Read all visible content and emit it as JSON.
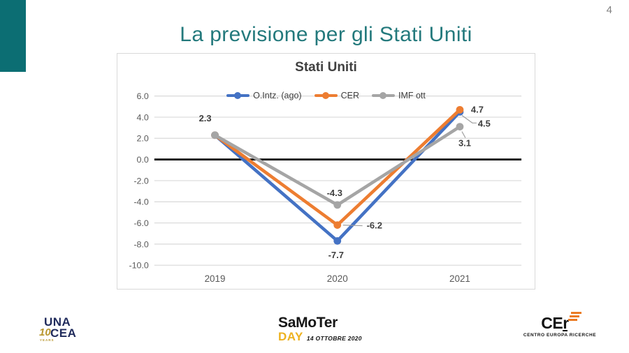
{
  "page": {
    "number": "4"
  },
  "slide": {
    "title": "La previsione per gli Stati Uniti"
  },
  "colors": {
    "accent_teal": "#0C6E73",
    "title_teal": "#23797C",
    "gridline": "#D9D9D9",
    "zero_line": "#000000",
    "axis_text": "#595959",
    "data_label_text": "#3F3F3F"
  },
  "chart_data": {
    "type": "line",
    "title": "Stati Uniti",
    "categories": [
      "2019",
      "2020",
      "2021"
    ],
    "series": [
      {
        "name": "O.Intz. (ago)",
        "color": "#4472C4",
        "values": [
          2.3,
          -7.7,
          4.5
        ]
      },
      {
        "name": "CER",
        "color": "#ED7D31",
        "values": [
          2.3,
          -6.2,
          4.7
        ]
      },
      {
        "name": "IMF ott",
        "color": "#A5A5A5",
        "values": [
          2.3,
          -4.3,
          3.1
        ]
      }
    ],
    "ylim": [
      -10,
      6
    ],
    "ytick_step": 2,
    "ytick_decimals": 1,
    "grid": true,
    "zero_line": true,
    "legend_position": "top-center",
    "data_labels_shown": [
      "2.3",
      "-7.7",
      "-6.2",
      "-4.3",
      "4.7",
      "4.5",
      "3.1"
    ]
  },
  "footer": {
    "unacea": {
      "line1": "UNA",
      "line2": "CEA",
      "ten": "10",
      "years": "YEARS"
    },
    "samoter": {
      "name": "SaMoTer",
      "day": "DAY",
      "date": "14 OTTOBRE 2020"
    },
    "cer": {
      "name": "CEr",
      "subtitle": "CENTRO EUROPA RICERCHE"
    }
  }
}
